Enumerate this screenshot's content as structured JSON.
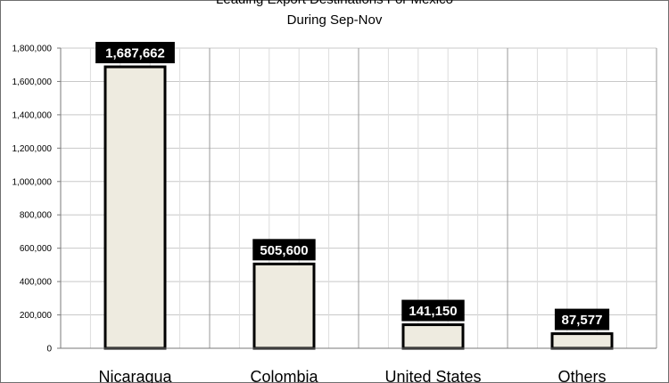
{
  "chart_data": {
    "type": "bar",
    "title": "Leading Export Destinations For Mexico",
    "subtitle": "During Sep-Nov",
    "categories": [
      "Nicaragua",
      "Colombia",
      "United States",
      "Others"
    ],
    "values": [
      1687662,
      505600,
      141150,
      87577
    ],
    "data_labels": [
      "1,687,662",
      "505,600",
      "141,150",
      "87,577"
    ],
    "yticks": [
      0,
      200000,
      400000,
      600000,
      800000,
      1000000,
      1200000,
      1400000,
      1600000,
      1800000
    ],
    "ytick_labels": [
      "0",
      "200,000",
      "400,000",
      "600,000",
      "800,000",
      "1,000,000",
      "1,200,000",
      "1,400,000",
      "1,600,000",
      "1,800,000"
    ],
    "ylim": [
      0,
      1800000
    ],
    "xlabel": "",
    "ylabel": "",
    "grid": true,
    "legend": false,
    "colors": {
      "bar_fill": "#eeebe0",
      "bar_stroke": "#000000",
      "label_background": "#000000",
      "label_text": "#ffffff",
      "gridline": "#c8c8c8"
    }
  }
}
